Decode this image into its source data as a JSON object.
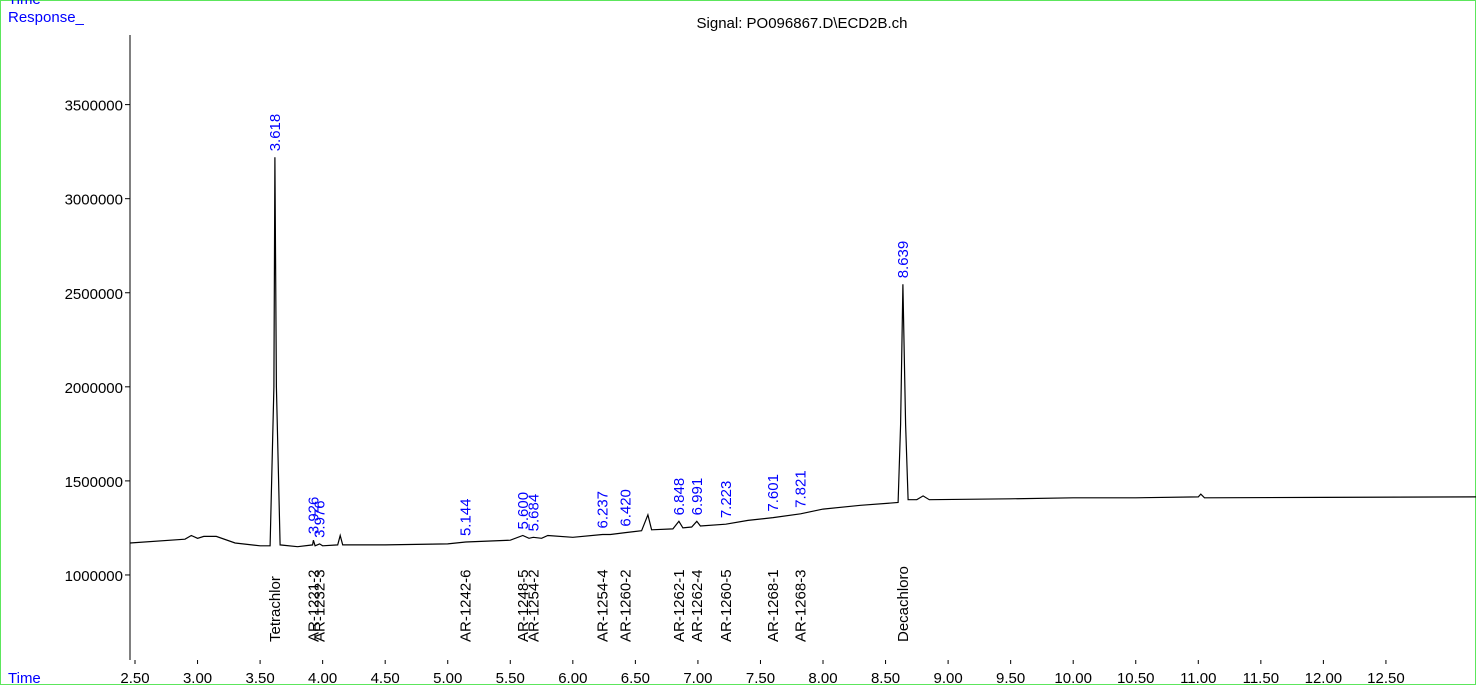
{
  "chart_data": {
    "type": "line",
    "title": "Signal: PO096867.D\\ECD2B.ch",
    "top_label": "Time",
    "ylabel": "Response_",
    "xlabel": "Time",
    "color": "#000000",
    "peak_color": "#0000ff",
    "x": [
      2.46,
      2.9,
      2.95,
      3.0,
      3.05,
      3.15,
      3.3,
      3.5,
      3.58,
      3.61,
      3.618,
      3.63,
      3.66,
      3.8,
      3.92,
      3.926,
      3.94,
      3.976,
      4.0,
      4.12,
      4.14,
      4.16,
      4.5,
      5.0,
      5.144,
      5.5,
      5.6,
      5.65,
      5.684,
      5.75,
      5.8,
      6.0,
      6.237,
      6.3,
      6.42,
      6.55,
      6.6,
      6.63,
      6.8,
      6.848,
      6.88,
      6.95,
      6.991,
      7.02,
      7.223,
      7.4,
      7.601,
      7.821,
      8.0,
      8.3,
      8.6,
      8.62,
      8.639,
      8.66,
      8.68,
      8.75,
      8.8,
      8.85,
      9.5,
      10.0,
      10.5,
      11.0,
      11.02,
      11.05,
      12.0,
      13.22
    ],
    "values": [
      1170000,
      1190000,
      1210000,
      1195000,
      1205000,
      1205000,
      1170000,
      1155000,
      1155000,
      2000000,
      3220000,
      2000000,
      1160000,
      1150000,
      1160000,
      1185000,
      1155000,
      1165000,
      1155000,
      1160000,
      1210000,
      1160000,
      1160000,
      1165000,
      1175000,
      1185000,
      1210000,
      1195000,
      1200000,
      1195000,
      1210000,
      1200000,
      1215000,
      1215000,
      1225000,
      1235000,
      1320000,
      1240000,
      1245000,
      1285000,
      1250000,
      1255000,
      1285000,
      1260000,
      1270000,
      1290000,
      1305000,
      1325000,
      1350000,
      1370000,
      1385000,
      1800000,
      2545000,
      1800000,
      1400000,
      1400000,
      1420000,
      1400000,
      1405000,
      1410000,
      1410000,
      1415000,
      1430000,
      1410000,
      1412000,
      1415000
    ],
    "peaks": [
      3.618,
      3.926,
      3.976,
      5.144,
      {
        "value": 5.6,
        "label": "5.600"
      },
      5.684,
      6.237,
      {
        "value": 6.42,
        "label": "6.420"
      },
      6.848,
      6.991,
      7.223,
      7.601,
      7.821,
      8.639
    ],
    "compounds": [
      {
        "name": "Tetrachlor",
        "rt": 3.618
      },
      {
        "name": "AR-1221-2",
        "rt": 3.926
      },
      {
        "name": "AR-1232-3",
        "rt": 3.976
      },
      {
        "name": "AR-1242-6",
        "rt": 5.144
      },
      {
        "name": "AR-1248-5",
        "rt": 5.6
      },
      {
        "name": "AR-1254-2",
        "rt": 5.684
      },
      {
        "name": "AR-1254-4",
        "rt": 6.237
      },
      {
        "name": "AR-1260-2",
        "rt": 6.42
      },
      {
        "name": "AR-1262-1",
        "rt": 6.848
      },
      {
        "name": "AR-1262-4",
        "rt": 6.991
      },
      {
        "name": "AR-1260-5",
        "rt": 7.223
      },
      {
        "name": "AR-1268-1",
        "rt": 7.601
      },
      {
        "name": "AR-1268-3",
        "rt": 7.821
      },
      {
        "name": "Decachloro",
        "rt": 8.639
      }
    ],
    "xlim": [
      2.46,
      13.22
    ],
    "ylim": [
      548000,
      3870000
    ],
    "xticks": [
      {
        "value": 2.5,
        "label": "2.50"
      },
      {
        "value": 3,
        "label": "3.00"
      },
      {
        "value": 3.5,
        "label": "3.50"
      },
      {
        "value": 4,
        "label": "4.00"
      },
      {
        "value": 4.5,
        "label": "4.50"
      },
      {
        "value": 5,
        "label": "5.00"
      },
      {
        "value": 5.5,
        "label": "5.50"
      },
      {
        "value": 6,
        "label": "6.00"
      },
      {
        "value": 6.5,
        "label": "6.50"
      },
      {
        "value": 7,
        "label": "7.00"
      },
      {
        "value": 7.5,
        "label": "7.50"
      },
      {
        "value": 8,
        "label": "8.00"
      },
      {
        "value": 8.5,
        "label": "8.50"
      },
      {
        "value": 9,
        "label": "9.00"
      },
      {
        "value": 9.5,
        "label": "9.50"
      },
      {
        "value": 10,
        "label": "10.00"
      },
      {
        "value": 10.5,
        "label": "10.50"
      },
      {
        "value": 11,
        "label": "11.00"
      },
      {
        "value": 11.5,
        "label": "11.50"
      },
      {
        "value": 12,
        "label": "12.00"
      },
      {
        "value": 12.5,
        "label": "12.50"
      }
    ],
    "yticks": [
      1000000,
      1500000,
      2000000,
      2500000,
      3000000,
      3500000
    ]
  }
}
